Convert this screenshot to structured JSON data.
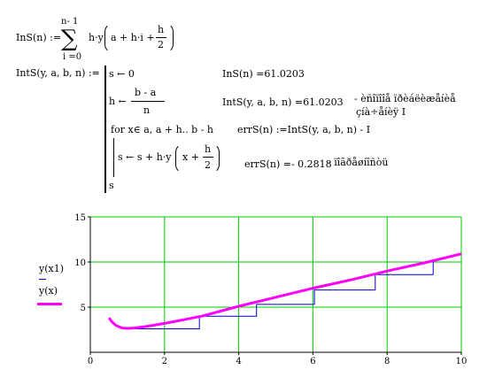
{
  "worksheet": {
    "ins_def": {
      "lhs": "InS(n) :=",
      "sum_upper": "n- 1",
      "sum_symbol": "∑",
      "sum_lower": "i =0",
      "body_pre": "h·y",
      "body_mid": "a + h·i +",
      "frac_num": "h",
      "frac_den": "2"
    },
    "ints_def": {
      "lhs": "IntS(y, a, b, n) :=",
      "line1": "s ← 0",
      "line2_pre": "h ←",
      "line2_num": "b - a",
      "line2_den": "n",
      "line3": "for  x∈ a, a + h.. b - h",
      "line4_pre": "s ← s + h·y",
      "line4_mid": "x +",
      "line4_num": "h",
      "line4_den": "2",
      "line5": "s"
    },
    "results": {
      "ins_value": "InS(n) =61.0203",
      "ints_value": "IntS(y, a, b, n) =61.0203",
      "comment_line1": "- èñîïîîå ïðèáëèæåíèå",
      "comment_line2": "çíà÷åíèÿ I",
      "err_def": "errS(n) :=IntS(y, a, b, n) - I",
      "err_value": "errS(n) =- 0.2818",
      "err_comment": "- ïîãðåøíîñòü"
    }
  },
  "chart_data": {
    "type": "line",
    "xlim": [
      0,
      10
    ],
    "ylim": [
      0,
      15
    ],
    "x_ticks": [
      "0",
      "2",
      "4",
      "6",
      "8",
      "10"
    ],
    "y_ticks": [
      "5",
      "10",
      "15"
    ],
    "grid": true,
    "legend": [
      "y(x1)",
      "y(x)"
    ],
    "series": [
      {
        "name": "y(x1)",
        "color": "#0000cc",
        "style": "step",
        "x": [
          0.98,
          1.48,
          1.48,
          2.94,
          2.94,
          4.48,
          4.48,
          6.04,
          6.04,
          7.68,
          7.68,
          9.24,
          9.24
        ],
        "y": [
          2.6,
          2.6,
          2.6,
          2.6,
          4.0,
          4.0,
          5.3,
          5.3,
          6.9,
          6.9,
          8.6,
          8.6,
          10.2
        ]
      },
      {
        "name": "y(x)",
        "color": "#ff00ff",
        "style": "line",
        "x": [
          0.5,
          0.6,
          0.7,
          0.85,
          1.0,
          1.2,
          1.5,
          2.0,
          2.5,
          3.0,
          4.0,
          5.0,
          6.0,
          7.0,
          8.0,
          9.0,
          10.0
        ],
        "y": [
          3.8,
          3.3,
          2.95,
          2.7,
          2.65,
          2.7,
          2.85,
          3.2,
          3.6,
          4.0,
          5.1,
          6.1,
          7.1,
          8.0,
          9.0,
          9.9,
          10.9
        ]
      }
    ]
  }
}
